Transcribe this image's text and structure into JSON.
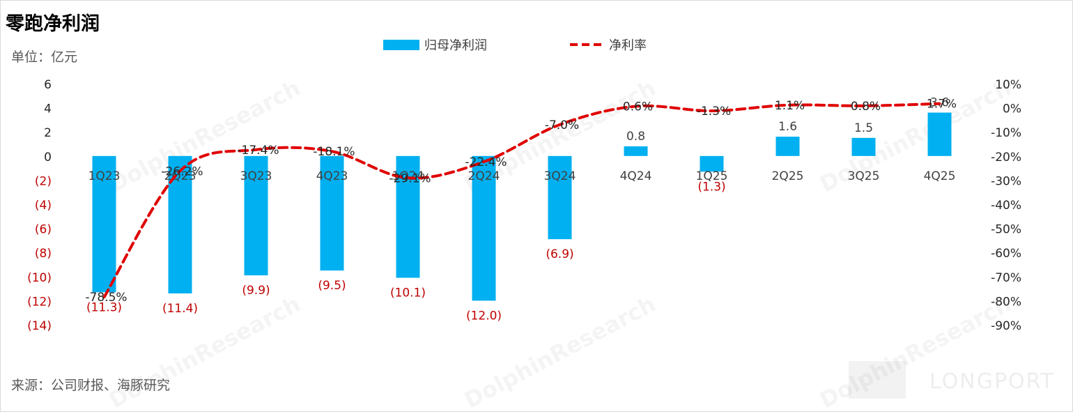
{
  "title": "零跑净利润",
  "unit_label": "单位：亿元",
  "source": "来源：公司财报、海豚研究",
  "watermark": "DolphinResearch",
  "brand": "LONGPORT",
  "chart_data": {
    "type": "bar",
    "categories": [
      "1Q23",
      "2Q23",
      "3Q23",
      "4Q23",
      "1Q24",
      "2Q24",
      "3Q24",
      "4Q24",
      "1Q25",
      "2Q25",
      "3Q25",
      "4Q25"
    ],
    "series": [
      {
        "name": "归母净利润",
        "type": "bar",
        "axis": "left",
        "color": "#00b0f0",
        "values": [
          -11.3,
          -11.4,
          -9.9,
          -9.5,
          -10.1,
          -12.0,
          -6.9,
          0.8,
          -1.3,
          1.6,
          1.5,
          3.6
        ],
        "labels": [
          "(11.3)",
          "(11.4)",
          "(9.9)",
          "(9.5)",
          "(10.1)",
          "(12.0)",
          "(6.9)",
          "0.8",
          "(1.3)",
          "1.6",
          "1.5",
          "3.6"
        ]
      },
      {
        "name": "净利率",
        "type": "line",
        "axis": "right",
        "style": "dashed",
        "color": "#e00000",
        "values": [
          -78.5,
          -26.2,
          -17.4,
          -18.1,
          -29.1,
          -22.4,
          -7.0,
          0.6,
          -1.3,
          1.1,
          0.8,
          1.7
        ],
        "labels": [
          "-78.5%",
          "-26.2%",
          "-17.4%",
          "-18.1%",
          "-29.1%",
          "-22.4%",
          "-7.0%",
          "0.6%",
          "-1.3%",
          "1.1%",
          "0.8%",
          "1.7%"
        ]
      }
    ],
    "y_left": {
      "ylim": [
        -14,
        6
      ],
      "ticks": [
        6,
        4,
        2,
        0,
        -2,
        -4,
        -6,
        -8,
        -10,
        -12,
        -14
      ],
      "tick_labels": [
        "6",
        "4",
        "2",
        "0",
        "(2)",
        "(4)",
        "(6)",
        "(8)",
        "(10)",
        "(12)",
        "(14)"
      ]
    },
    "y_right": {
      "ylim": [
        -90,
        10
      ],
      "ticks": [
        10,
        0,
        -10,
        -20,
        -30,
        -40,
        -50,
        -60,
        -70,
        -80,
        -90
      ],
      "tick_labels": [
        "10%",
        "0%",
        "-10%",
        "-20%",
        "-30%",
        "-40%",
        "-50%",
        "-60%",
        "-70%",
        "-80%",
        "-90%"
      ]
    },
    "negative_label_color": "#c00000",
    "positive_label_color": "#404040",
    "grid": false,
    "legend": "top-center"
  }
}
